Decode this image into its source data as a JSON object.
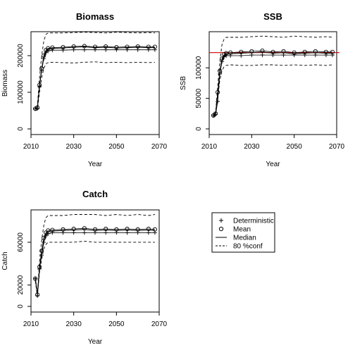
{
  "chart_data": [
    {
      "type": "line",
      "title": "Biomass",
      "xlabel": "Year",
      "ylabel": "Biomass",
      "xlim": [
        2010,
        2070
      ],
      "ylim": [
        0,
        250000
      ],
      "x_ticks": [
        2010,
        2030,
        2050,
        2070
      ],
      "y_ticks": [
        0,
        100000,
        200000
      ],
      "series": [
        {
          "name": "Deterministic",
          "style": "plus",
          "x": [
            2012,
            2013,
            2014,
            2015,
            2016,
            2017,
            2018,
            2020,
            2025,
            2030,
            2035,
            2040,
            2045,
            2050,
            2055,
            2060,
            2065,
            2068
          ],
          "y": [
            55000,
            56000,
            115000,
            160000,
            192000,
            208000,
            213000,
            215000,
            215000,
            216000,
            216000,
            216000,
            216000,
            216000,
            216000,
            216000,
            216000,
            216000
          ]
        },
        {
          "name": "Mean",
          "style": "circle",
          "x": [
            2012,
            2013,
            2014,
            2015,
            2016,
            2017,
            2018,
            2020,
            2025,
            2030,
            2035,
            2040,
            2045,
            2050,
            2055,
            2060,
            2065,
            2068
          ],
          "y": [
            55000,
            58000,
            120000,
            165000,
            200000,
            215000,
            220000,
            222000,
            223000,
            225000,
            226000,
            224000,
            225000,
            223000,
            224000,
            225000,
            224000,
            224000
          ]
        },
        {
          "name": "Median",
          "style": "solid",
          "x": [
            2012,
            2013,
            2014,
            2015,
            2016,
            2017,
            2018,
            2020,
            2025,
            2030,
            2035,
            2040,
            2045,
            2050,
            2055,
            2060,
            2065,
            2068
          ],
          "y": [
            55000,
            57000,
            118000,
            163000,
            197000,
            212000,
            218000,
            220000,
            221000,
            223000,
            224000,
            222000,
            223000,
            221000,
            222000,
            223000,
            222000,
            222000
          ]
        },
        {
          "name": "80 %conf lower",
          "style": "dashed",
          "x": [
            2012,
            2013,
            2014,
            2015,
            2016,
            2017,
            2018,
            2020,
            2025,
            2030,
            2035,
            2040,
            2045,
            2050,
            2055,
            2060,
            2065,
            2068
          ],
          "y": [
            50000,
            52000,
            100000,
            140000,
            165000,
            178000,
            181000,
            182000,
            181000,
            180000,
            182000,
            183000,
            181000,
            182000,
            181000,
            182000,
            181000,
            182000
          ]
        },
        {
          "name": "80 %conf upper",
          "style": "dashed",
          "x": [
            2012,
            2013,
            2014,
            2015,
            2016,
            2017,
            2018,
            2020,
            2025,
            2030,
            2035,
            2040,
            2045,
            2050,
            2055,
            2060,
            2065,
            2068
          ],
          "y": [
            60000,
            64000,
            140000,
            200000,
            240000,
            258000,
            262000,
            262000,
            262000,
            263000,
            264000,
            263000,
            262000,
            264000,
            263000,
            262000,
            263000,
            262000
          ]
        }
      ]
    },
    {
      "type": "line",
      "title": "SSB",
      "xlabel": "Year",
      "ylabel": "SSB",
      "xlim": [
        2010,
        2070
      ],
      "ylim": [
        0,
        150000
      ],
      "x_ticks": [
        2010,
        2030,
        2050,
        2070
      ],
      "y_ticks": [
        0,
        50000,
        100000
      ],
      "reference_line": {
        "y": 125000,
        "color": "#cc0000"
      },
      "series": [
        {
          "name": "Deterministic",
          "style": "plus",
          "x": [
            2012,
            2013,
            2014,
            2015,
            2016,
            2017,
            2018,
            2020,
            2025,
            2030,
            2035,
            2040,
            2045,
            2050,
            2055,
            2060,
            2065,
            2068
          ],
          "y": [
            22000,
            24000,
            45000,
            90000,
            110000,
            118000,
            120000,
            120000,
            120000,
            121000,
            121000,
            121000,
            121000,
            121000,
            121000,
            121000,
            121000,
            121000
          ]
        },
        {
          "name": "Mean",
          "style": "circle",
          "x": [
            2012,
            2013,
            2014,
            2015,
            2016,
            2017,
            2018,
            2020,
            2025,
            2030,
            2035,
            2040,
            2045,
            2050,
            2055,
            2060,
            2065,
            2068
          ],
          "y": [
            22000,
            25000,
            60000,
            95000,
            115000,
            122000,
            124000,
            125000,
            126000,
            127000,
            128000,
            126000,
            127000,
            125000,
            126000,
            127000,
            126000,
            126000
          ]
        },
        {
          "name": "Median",
          "style": "solid",
          "x": [
            2012,
            2013,
            2014,
            2015,
            2016,
            2017,
            2018,
            2020,
            2025,
            2030,
            2035,
            2040,
            2045,
            2050,
            2055,
            2060,
            2065,
            2068
          ],
          "y": [
            22000,
            24500,
            58000,
            93000,
            113000,
            120000,
            122000,
            123000,
            124000,
            125000,
            126000,
            124000,
            125000,
            123000,
            124000,
            125000,
            124000,
            124000
          ]
        },
        {
          "name": "80 %conf lower",
          "style": "dashed",
          "x": [
            2012,
            2013,
            2014,
            2015,
            2016,
            2017,
            2018,
            2020,
            2025,
            2030,
            2035,
            2040,
            2045,
            2050,
            2055,
            2060,
            2065,
            2068
          ],
          "y": [
            20000,
            22000,
            50000,
            80000,
            95000,
            102000,
            104000,
            105000,
            104000,
            104000,
            105000,
            105000,
            104000,
            105000,
            104000,
            105000,
            104000,
            105000
          ]
        },
        {
          "name": "80 %conf upper",
          "style": "dashed",
          "x": [
            2012,
            2013,
            2014,
            2015,
            2016,
            2017,
            2018,
            2020,
            2025,
            2030,
            2035,
            2040,
            2045,
            2050,
            2055,
            2060,
            2065,
            2068
          ],
          "y": [
            24000,
            27000,
            70000,
            110000,
            138000,
            147000,
            150000,
            150000,
            150000,
            151000,
            152000,
            151000,
            150000,
            152000,
            151000,
            150000,
            151000,
            150000
          ]
        }
      ]
    },
    {
      "type": "line",
      "title": "Catch",
      "xlabel": "Year",
      "ylabel": "Catch",
      "xlim": [
        2010,
        2070
      ],
      "ylim": [
        0,
        85000
      ],
      "x_ticks": [
        2010,
        2030,
        2050,
        2070
      ],
      "y_ticks": [
        0,
        20000,
        60000
      ],
      "series": [
        {
          "name": "Deterministic",
          "style": "plus",
          "x": [
            2012,
            2013,
            2014,
            2015,
            2016,
            2017,
            2018,
            2020,
            2025,
            2030,
            2035,
            2040,
            2045,
            2050,
            2055,
            2060,
            2065,
            2068
          ],
          "y": [
            26000,
            10000,
            35000,
            48000,
            60000,
            66000,
            68000,
            69000,
            69000,
            69000,
            69000,
            69000,
            69000,
            69000,
            69000,
            69000,
            69000,
            69000
          ]
        },
        {
          "name": "Mean",
          "style": "circle",
          "x": [
            2012,
            2013,
            2014,
            2015,
            2016,
            2017,
            2018,
            2020,
            2025,
            2030,
            2035,
            2040,
            2045,
            2050,
            2055,
            2060,
            2065,
            2068
          ],
          "y": [
            26000,
            11000,
            37000,
            52000,
            64000,
            69000,
            71000,
            71500,
            72000,
            72500,
            73000,
            72000,
            72500,
            72000,
            72500,
            72000,
            72500,
            72000
          ]
        },
        {
          "name": "Median",
          "style": "solid",
          "x": [
            2012,
            2013,
            2014,
            2015,
            2016,
            2017,
            2018,
            2020,
            2025,
            2030,
            2035,
            2040,
            2045,
            2050,
            2055,
            2060,
            2065,
            2068
          ],
          "y": [
            26000,
            10500,
            36000,
            51000,
            63000,
            68000,
            70000,
            70500,
            71000,
            71500,
            72000,
            71000,
            71500,
            71000,
            71500,
            71000,
            71500,
            71000
          ]
        },
        {
          "name": "80 %conf lower",
          "style": "dashed",
          "x": [
            2012,
            2013,
            2014,
            2015,
            2016,
            2017,
            2018,
            2020,
            2025,
            2030,
            2035,
            2040,
            2045,
            2050,
            2055,
            2060,
            2065,
            2068
          ],
          "y": [
            24000,
            9000,
            32000,
            44000,
            54000,
            58000,
            60000,
            60000,
            60000,
            60000,
            61000,
            60000,
            60000,
            60000,
            60000,
            60000,
            60000,
            60000
          ]
        },
        {
          "name": "80 %conf upper",
          "style": "dashed",
          "x": [
            2012,
            2013,
            2014,
            2015,
            2016,
            2017,
            2018,
            2020,
            2025,
            2030,
            2035,
            2040,
            2045,
            2050,
            2055,
            2060,
            2065,
            2068
          ],
          "y": [
            28000,
            12000,
            42000,
            62000,
            76000,
            83000,
            85000,
            85000,
            85000,
            86000,
            86000,
            86000,
            85000,
            86000,
            85000,
            86000,
            85000,
            86000
          ]
        }
      ]
    }
  ],
  "legend": {
    "entries": [
      {
        "symbol": "+",
        "style": "plus",
        "label": "Deterministic"
      },
      {
        "symbol": "o",
        "style": "circle",
        "label": "Mean"
      },
      {
        "symbol": "—",
        "style": "solid",
        "label": "Median"
      },
      {
        "symbol": "--",
        "style": "dashed",
        "label": "80 %conf"
      }
    ]
  }
}
